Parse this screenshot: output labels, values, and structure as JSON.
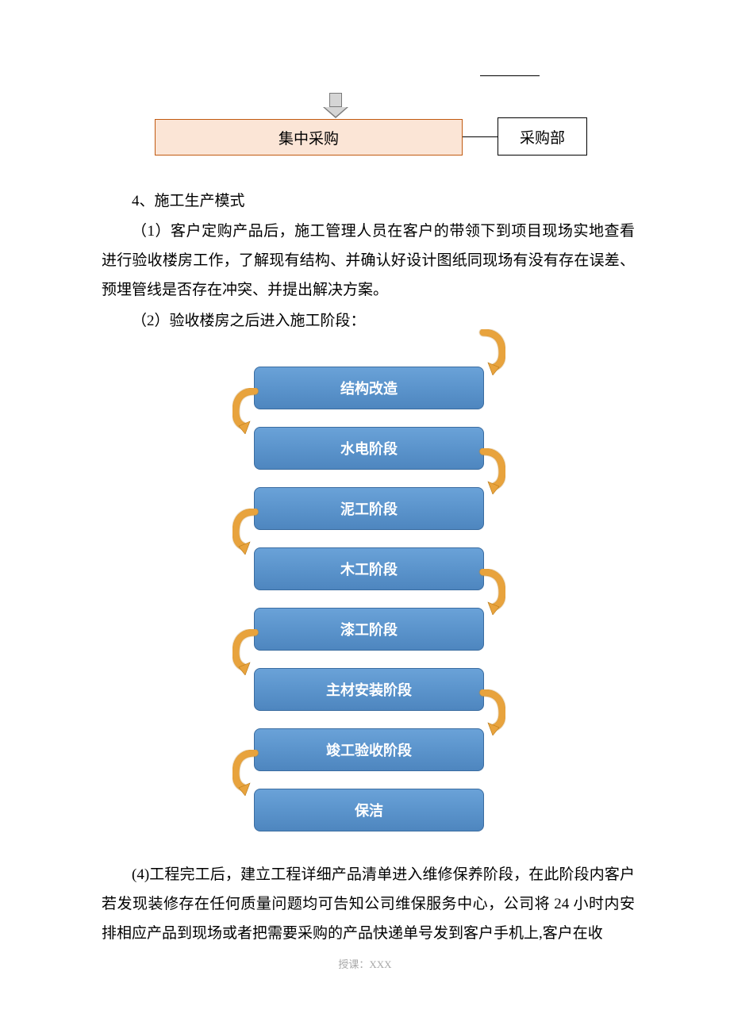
{
  "top_diagram": {
    "main_box": {
      "label": "集中采购",
      "fill": "#fbe5d6",
      "border": "#c15a11"
    },
    "side_box": {
      "label": "采购部",
      "fill": "#ffffff",
      "border": "#000000"
    },
    "arrow_fill": "#d5d5d5",
    "arrow_border": "#7a7a7a"
  },
  "paragraphs": {
    "p1": "4、施工生产模式",
    "p2": "（1）客户定购产品后，施工管理人员在客户的带领下到项目现场实地查看进行验收楼房工作，了解现有结构、并确认好设计图纸同现场有没有存在误差、预埋管线是否存在冲突、并提出解决方案。",
    "p3": "（2）验收楼房之后进入施工阶段：",
    "p4": "(4)工程完工后，建立工程详细产品清单进入维修保养阶段，在此阶段内客户若发现装修存在任何质量问题均可告知公司维保服务中心，公司将 24 小时内安排相应产品到现场或者把需要采购的产品快递单号发到客户手机上,客户在收"
  },
  "flowchart": {
    "box_fill_top": "#6aa2d8",
    "box_fill_bottom": "#4e86bf",
    "box_border": "#3a6ca0",
    "text_color": "#ffffff",
    "arrow_color": "#e8a33d",
    "arrow_stroke": "#b87a1a",
    "steps": [
      {
        "label": "结构改造",
        "arrow_side": "right"
      },
      {
        "label": "水电阶段",
        "arrow_side": "left"
      },
      {
        "label": "泥工阶段",
        "arrow_side": "right"
      },
      {
        "label": "木工阶段",
        "arrow_side": "left"
      },
      {
        "label": "漆工阶段",
        "arrow_side": "right"
      },
      {
        "label": "主材安装阶段",
        "arrow_side": "left"
      },
      {
        "label": "竣工验收阶段",
        "arrow_side": "right"
      },
      {
        "label": "保洁",
        "arrow_side": "left"
      }
    ]
  },
  "footer": "授课：XXX",
  "body_font_size": 19,
  "flow_font_size": 18
}
